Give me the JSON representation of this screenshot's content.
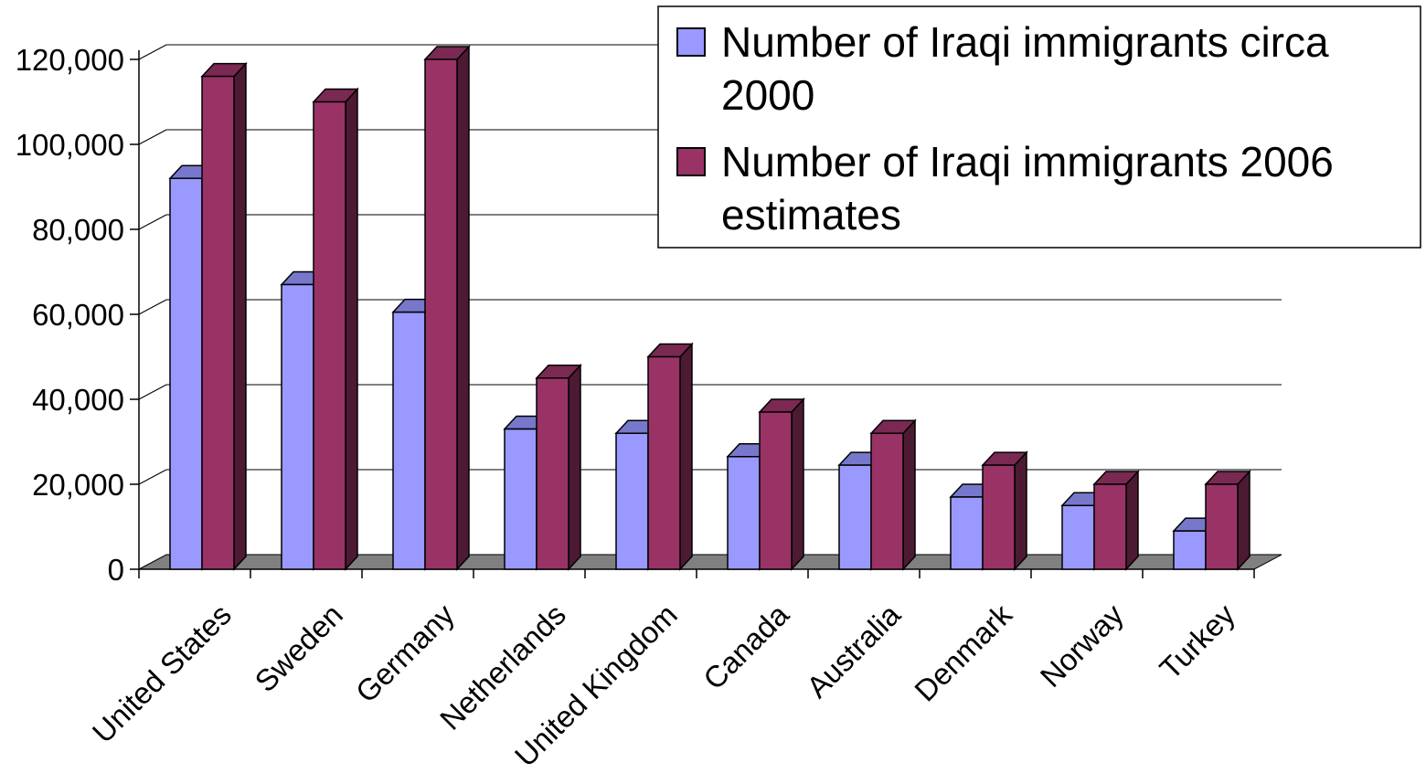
{
  "chart_data": {
    "type": "bar",
    "title": "",
    "xlabel": "",
    "ylabel": "",
    "ylim": [
      0,
      120000
    ],
    "y_ticks": [
      "0",
      "20,000",
      "40,000",
      "60,000",
      "80,000",
      "100,000",
      "120,000"
    ],
    "y_tick_values": [
      0,
      20000,
      40000,
      60000,
      80000,
      100000,
      120000
    ],
    "grid": true,
    "three_d": true,
    "legend_position": "top-right",
    "categories": [
      "United States",
      "Sweden",
      "Germany",
      "Netherlands",
      "United Kingdom",
      "Canada",
      "Australia",
      "Denmark",
      "Norway",
      "Turkey"
    ],
    "series": [
      {
        "name": "Number of Iraqi immigrants circa 2000",
        "legend_lines": [
          "Number of Iraqi immigrants circa",
          "2000"
        ],
        "color": "#9999ff",
        "values": [
          92000,
          67000,
          60500,
          33000,
          32000,
          26500,
          24500,
          17000,
          15000,
          9000
        ]
      },
      {
        "name": "Number of Iraqi immigrants 2006 estimates",
        "legend_lines": [
          "Number of Iraqi immigrants 2006",
          "estimates"
        ],
        "color": "#993366",
        "values": [
          116000,
          110000,
          120000,
          45000,
          50000,
          37000,
          32000,
          24500,
          20000,
          20000
        ]
      }
    ],
    "colors": {
      "floor": "#808080",
      "gridline": "#000000",
      "series1_side": "#4d4d80",
      "series1_top": "#7777cc",
      "series2_side": "#4d1a33",
      "series2_top": "#7a2952"
    }
  }
}
